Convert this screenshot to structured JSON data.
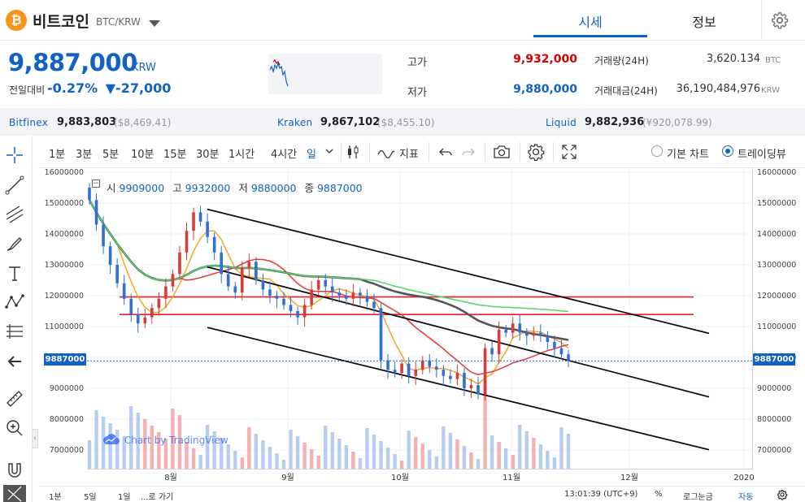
{
  "header": {
    "coin_symbol_glyph": "₿",
    "coin_name": "비트코인",
    "coin_code": "BTC/KRW",
    "tabs": [
      {
        "label": "시세",
        "active": true
      },
      {
        "label": "정보",
        "active": false
      }
    ]
  },
  "price": {
    "current": "9,887,000",
    "currency": "KRW",
    "change_label": "전일대비",
    "change_pct": "-0.27%",
    "change_amt": "▼-27,000",
    "high_label": "고가",
    "high": "9,932,000",
    "low_label": "저가",
    "low": "9,880,000",
    "volume_label": "거래량(24H)",
    "volume": "3,620.134",
    "volume_unit": "BTC",
    "amount_label": "거래대금(24H)",
    "amount": "36,190,484,976",
    "amount_unit": "KRW",
    "color_down": "#1261c4",
    "color_up": "#d60000"
  },
  "exchanges": [
    {
      "name": "Bitfinex",
      "price": "9,883,803",
      "usd": "($8,469.41)"
    },
    {
      "name": "Kraken",
      "price": "9,867,102",
      "usd": "($8,455.10)"
    },
    {
      "name": "Liquid",
      "price": "9,882,936",
      "usd": "(¥920,078.99)"
    }
  ],
  "toolbar": {
    "timeframes": [
      "1분",
      "3분",
      "5분",
      "10분",
      "15분",
      "30분",
      "1시간",
      "4시간",
      "일"
    ],
    "active_timeframe": "일",
    "indicator_label": "지표",
    "basic_chart_label": "기본 차트",
    "tradingview_label": "트레이딩뷰",
    "selected_view": "트레이딩뷰"
  },
  "chart_data": {
    "type": "candlestick",
    "symbol": "BTC/KRW",
    "interval": "1D",
    "ohlc_legend": [
      {
        "label": "시",
        "value": "9909000"
      },
      {
        "label": "고",
        "value": "9932000"
      },
      {
        "label": "저",
        "value": "9880000"
      },
      {
        "label": "종",
        "value": "9887000"
      }
    ],
    "last_price_label": "9887000",
    "y_ticks": [
      "16000000",
      "15000000",
      "14000000",
      "13000000",
      "12000000",
      "11000000",
      "10000000",
      "9000000",
      "8000000",
      "7000000"
    ],
    "x_ticks": [
      "8월",
      "9월",
      "10월",
      "11월",
      "12월",
      "2020"
    ],
    "watermark": "Chart by TradingView",
    "closes": [
      15100000,
      14300000,
      13600000,
      13000000,
      12400000,
      11900000,
      11400000,
      11100000,
      11300000,
      11600000,
      11900000,
      12300000,
      12700000,
      13400000,
      14100000,
      14700000,
      14400000,
      13900000,
      13400000,
      12700000,
      12300000,
      12100000,
      12900000,
      13100000,
      12500000,
      12200000,
      12000000,
      11900000,
      11700000,
      11500000,
      11300000,
      11700000,
      12200000,
      12500000,
      12300000,
      12100000,
      12000000,
      11900000,
      12100000,
      12000000,
      11800000,
      11600000,
      9900000,
      9600000,
      9500000,
      9800000,
      9400000,
      9600000,
      9900000,
      9700000,
      9600000,
      9400000,
      9300000,
      9500000,
      9000000,
      9100000,
      8800000,
      10300000,
      10100000,
      10900000,
      10800000,
      11100000,
      10800000,
      10700000,
      10800000,
      10700000,
      10500000,
      10300000,
      10100000,
      9887000
    ],
    "series": [
      {
        "name": "ma-orange",
        "color": "#f5a623"
      },
      {
        "name": "ma-red",
        "color": "#e53935"
      },
      {
        "name": "ma-dark",
        "color": "#555555"
      },
      {
        "name": "ma-green",
        "color": "#4cd964"
      }
    ],
    "horizontal_levels": [
      11960000,
      11390000
    ],
    "channel_lines": [
      {
        "from": [
          14800000,
          0.196
        ],
        "to": [
          10780000,
          1.0
        ]
      },
      {
        "from": [
          12930000,
          0.196
        ],
        "to": [
          8720000,
          1.0
        ]
      },
      {
        "from": [
          10970000,
          0.196
        ],
        "to": [
          7010000,
          1.0
        ]
      }
    ]
  },
  "bottom": {
    "ranges": [
      "1분",
      "5일",
      "1일"
    ],
    "goto_label": "...로 가기",
    "time": "13:01:39 (UTC+9)",
    "percent": "%",
    "log": "로그눈금",
    "auto": "자동"
  }
}
